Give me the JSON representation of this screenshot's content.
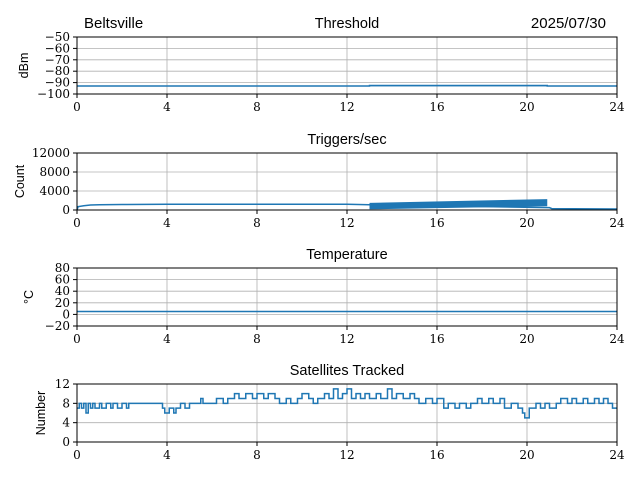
{
  "header": {
    "location": "Beltsville",
    "date": "2025/07/30"
  },
  "colors": {
    "series": "#1f77b4",
    "grid": "#b0b0b0",
    "axes": "#000000"
  },
  "chart_data": [
    {
      "id": "threshold",
      "type": "line",
      "title": "Threshold",
      "xlabel": "",
      "ylabel": "dBm",
      "xlim": [
        0,
        24
      ],
      "ylim": [
        -100,
        -50
      ],
      "xticks": [
        0,
        4,
        8,
        12,
        16,
        20,
        24
      ],
      "yticks": [
        -100,
        -90,
        -80,
        -70,
        -60,
        -50
      ],
      "ytick_labels": [
        "−100",
        "−90",
        "−80",
        "−70",
        "−60",
        "−50"
      ],
      "grid": true,
      "series": [
        {
          "x": [
            0,
            13,
            13,
            20.9,
            20.9,
            24
          ],
          "y": [
            -93,
            -93,
            -92.5,
            -92.5,
            -93,
            -93
          ]
        }
      ],
      "band": {
        "x": [
          13,
          20.9
        ],
        "y": [
          -93.3,
          -92.2
        ]
      }
    },
    {
      "id": "triggers",
      "type": "line",
      "title": "Triggers/sec",
      "xlabel": "",
      "ylabel": "Count",
      "xlim": [
        0,
        24
      ],
      "ylim": [
        0,
        12000
      ],
      "xticks": [
        0,
        4,
        8,
        12,
        16,
        20,
        24
      ],
      "yticks": [
        0,
        4000,
        8000,
        12000
      ],
      "ytick_labels": [
        "0",
        "4000",
        "8000",
        "12000"
      ],
      "grid": true,
      "series": [
        {
          "x": [
            0,
            0.05,
            0.3,
            0.6,
            1,
            2,
            4,
            6,
            8,
            10,
            12,
            13,
            21,
            21.1,
            24
          ],
          "y": [
            0,
            700,
            900,
            1050,
            1100,
            1150,
            1200,
            1200,
            1200,
            1200,
            1200,
            1100,
            500,
            300,
            200
          ]
        }
      ],
      "band": {
        "x": [
          13,
          20.9
        ],
        "y_low": [
          150,
          800
        ],
        "y_high": [
          1500,
          2300
        ]
      }
    },
    {
      "id": "temperature",
      "type": "line",
      "title": "Temperature",
      "xlabel": "",
      "ylabel": "°C",
      "xlim": [
        0,
        24
      ],
      "ylim": [
        -20,
        80
      ],
      "xticks": [
        0,
        4,
        8,
        12,
        16,
        20,
        24
      ],
      "yticks": [
        -20,
        0,
        20,
        40,
        60,
        80
      ],
      "ytick_labels": [
        "−20",
        "0",
        "20",
        "40",
        "60",
        "80"
      ],
      "grid": true,
      "series": [
        {
          "x": [
            0,
            24
          ],
          "y": [
            5,
            5
          ]
        }
      ]
    },
    {
      "id": "satellites",
      "type": "line",
      "title": "Satellites Tracked",
      "xlabel": "",
      "ylabel": "Number",
      "xlim": [
        0,
        24
      ],
      "ylim": [
        0,
        12
      ],
      "xticks": [
        0,
        4,
        8,
        12,
        16,
        20,
        24
      ],
      "yticks": [
        0,
        4,
        8,
        12
      ],
      "ytick_labels": [
        "0",
        "4",
        "8",
        "12"
      ],
      "grid": true,
      "series": [
        {
          "step": true,
          "x": [
            0,
            0.1,
            0.2,
            0.3,
            0.4,
            0.5,
            0.6,
            0.7,
            0.8,
            1.0,
            1.1,
            1.3,
            1.5,
            1.6,
            1.8,
            2.0,
            2.2,
            2.3,
            2.4,
            3.8,
            3.9,
            4.1,
            4.3,
            4.4,
            4.6,
            4.8,
            5.0,
            5.2,
            5.5,
            5.6,
            6.0,
            6.2,
            6.5,
            6.7,
            7.0,
            7.2,
            7.5,
            7.8,
            8.0,
            8.3,
            8.5,
            8.8,
            9.0,
            9.3,
            9.5,
            9.8,
            10.0,
            10.3,
            10.5,
            10.7,
            11.0,
            11.2,
            11.4,
            11.6,
            11.8,
            12.0,
            12.2,
            12.4,
            12.6,
            12.8,
            13.0,
            13.3,
            13.5,
            13.8,
            14.0,
            14.2,
            14.5,
            14.8,
            15.0,
            15.2,
            15.5,
            15.8,
            16.0,
            16.3,
            16.5,
            16.8,
            17.0,
            17.3,
            17.5,
            17.8,
            18.0,
            18.3,
            18.5,
            18.8,
            19.0,
            19.3,
            19.6,
            19.8,
            19.9,
            20.1,
            20.4,
            20.6,
            20.8,
            21.0,
            21.3,
            21.5,
            21.8,
            22.0,
            22.2,
            22.5,
            22.7,
            23.0,
            23.2,
            23.4,
            23.6,
            23.8,
            24.0
          ],
          "y": [
            7,
            8,
            7,
            8,
            6,
            8,
            7,
            8,
            7,
            8,
            7,
            8,
            7,
            8,
            7,
            8,
            7,
            8,
            8,
            7,
            6,
            7,
            6,
            7,
            8,
            7,
            8,
            8,
            9,
            8,
            8,
            9,
            8,
            9,
            10,
            9,
            10,
            9,
            10,
            9,
            10,
            9,
            8,
            9,
            8,
            9,
            10,
            9,
            8,
            9,
            10,
            9,
            11,
            9,
            10,
            11,
            9,
            10,
            9,
            10,
            9,
            10,
            9,
            11,
            9,
            10,
            9,
            10,
            9,
            8,
            9,
            8,
            9,
            7,
            8,
            7,
            8,
            7,
            8,
            9,
            8,
            9,
            8,
            9,
            7,
            8,
            7,
            6,
            5,
            7,
            8,
            7,
            8,
            7,
            8,
            9,
            8,
            9,
            8,
            9,
            8,
            9,
            8,
            9,
            8,
            7,
            7
          ]
        }
      ]
    }
  ]
}
